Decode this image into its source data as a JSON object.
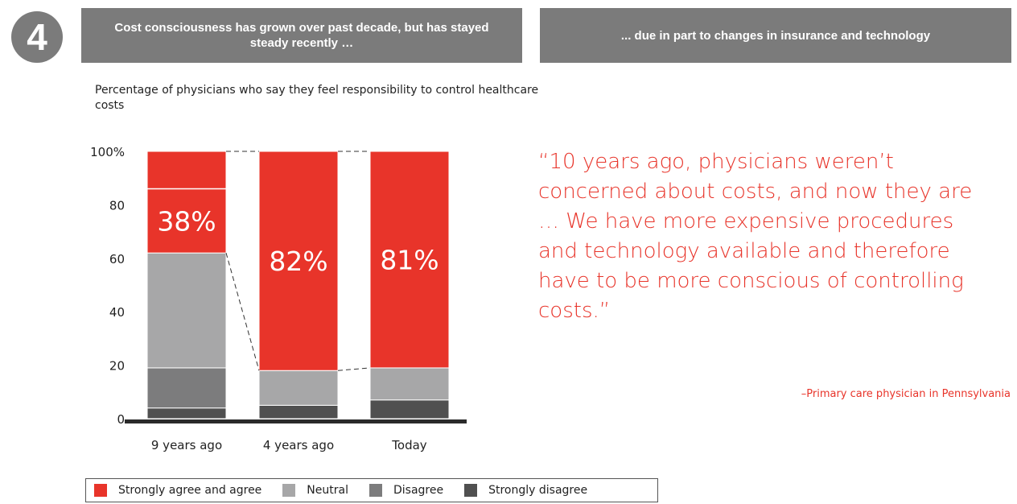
{
  "step_number": "4",
  "banners": {
    "left": "Cost consciousness has grown over past decade, but has stayed steady recently …",
    "right": "... due in part to changes in insurance and technology"
  },
  "quote": {
    "text": "“10 years ago, physicians weren’t concerned about costs, and now they are … We have more expensive procedures and technology available and therefore have to be more conscious of controlling costs.”",
    "attribution": "–Primary care physician in Pennsylvania"
  },
  "colors": {
    "banner": "#7b7b7b",
    "strongly_agree": "#e8342a",
    "neutral": "#a7a7a8",
    "disagree": "#7c7c7d",
    "strongly_disagree": "#505050",
    "quote": "#e8342a"
  },
  "chart_data": {
    "type": "bar",
    "stacked": true,
    "percent_stacked": true,
    "subtitle": "Percentage of physicians who say they feel responsibility to control healthcare costs",
    "categories": [
      "9 years ago",
      "4 years ago",
      "Today"
    ],
    "y_ticks": [
      "100%",
      "80",
      "60",
      "40",
      "20",
      "0"
    ],
    "ylim": [
      0,
      100
    ],
    "series": [
      {
        "name": "Strongly disagree",
        "values": [
          4,
          5,
          7
        ],
        "color": "#505050"
      },
      {
        "name": "Disagree",
        "values": [
          15,
          0,
          0
        ],
        "color": "#7c7c7d"
      },
      {
        "name": "Neutral",
        "values": [
          43,
          13,
          12
        ],
        "color": "#a7a7a8"
      },
      {
        "name": "Strongly agree and agree",
        "values": [
          38,
          82,
          81
        ],
        "color": "#e8342a"
      }
    ],
    "agree_split": [
      14,
      0,
      0
    ],
    "data_labels": [
      "38%",
      "82%",
      "81%"
    ],
    "legend_order": [
      "Strongly agree and agree",
      "Neutral",
      "Disagree",
      "Strongly disagree"
    ],
    "legend_position": "bottom",
    "grid": false
  }
}
